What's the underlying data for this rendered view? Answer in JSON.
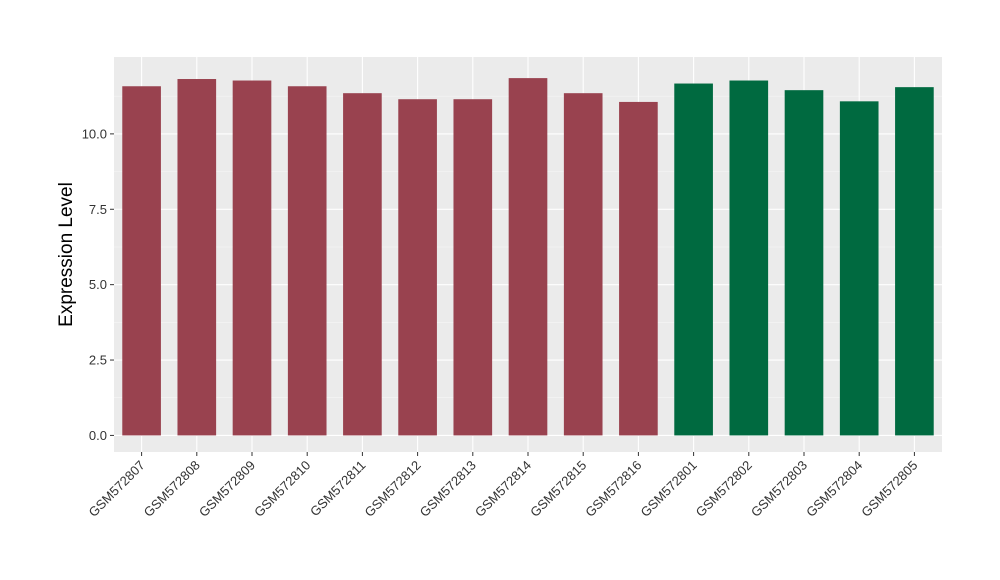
{
  "chart_data": {
    "type": "bar",
    "title": "",
    "xlabel": "",
    "ylabel": "Expression Level",
    "ylim": [
      -0.55,
      12.55
    ],
    "yticks": [
      0.0,
      2.5,
      5.0,
      7.5,
      10.0
    ],
    "ytick_labels": [
      "0.0",
      "2.5",
      "5.0",
      "7.5",
      "10.0"
    ],
    "categories": [
      "GSM572807",
      "GSM572808",
      "GSM572809",
      "GSM572810",
      "GSM572811",
      "GSM572812",
      "GSM572813",
      "GSM572814",
      "GSM572815",
      "GSM572816",
      "GSM572801",
      "GSM572802",
      "GSM572803",
      "GSM572804",
      "GSM572805"
    ],
    "values": [
      11.58,
      11.82,
      11.77,
      11.58,
      11.35,
      11.15,
      11.15,
      11.85,
      11.35,
      11.06,
      11.67,
      11.77,
      11.45,
      11.08,
      11.55
    ],
    "bar_colors": [
      "#99424F",
      "#99424F",
      "#99424F",
      "#99424F",
      "#99424F",
      "#99424F",
      "#99424F",
      "#99424F",
      "#99424F",
      "#99424F",
      "#006A40",
      "#006A40",
      "#006A40",
      "#006A40",
      "#006A40"
    ],
    "grid": true,
    "legend": "none",
    "panel_background": "#EBEBEB"
  }
}
